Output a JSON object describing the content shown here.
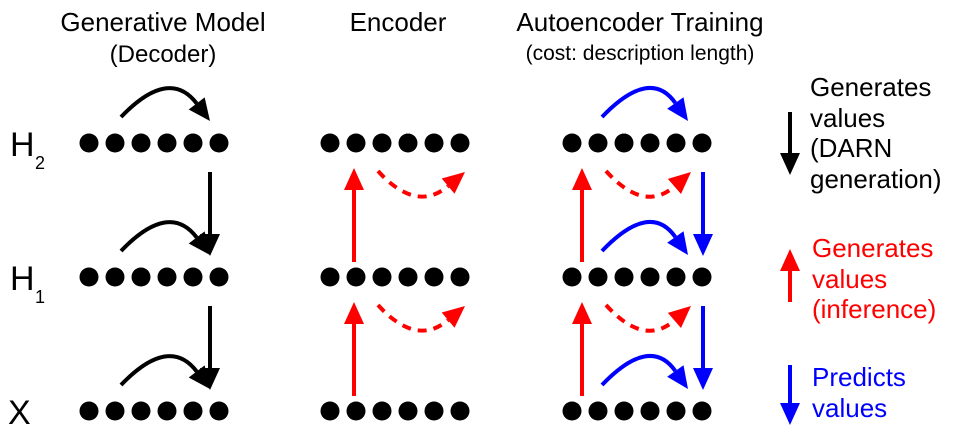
{
  "colors": {
    "black": "#000000",
    "red": "#ff0000",
    "blue": "#0000ff"
  },
  "columns": {
    "decoder": {
      "title": "Generative Model",
      "subtitle": "(Decoder)"
    },
    "encoder": {
      "title": "Encoder"
    },
    "training": {
      "title": "Autoencoder Training",
      "subtitle": "(cost: description length)"
    }
  },
  "rows": {
    "h2": {
      "letter": "H",
      "sub": "2"
    },
    "h1": {
      "letter": "H",
      "sub": "1"
    },
    "x": {
      "letter": "X"
    }
  },
  "legend": {
    "black": "Generates\nvalues\n(DARN\ngeneration)",
    "red": "Generates\nvalues\n(inference)",
    "blue": "Predicts\nvalues"
  }
}
